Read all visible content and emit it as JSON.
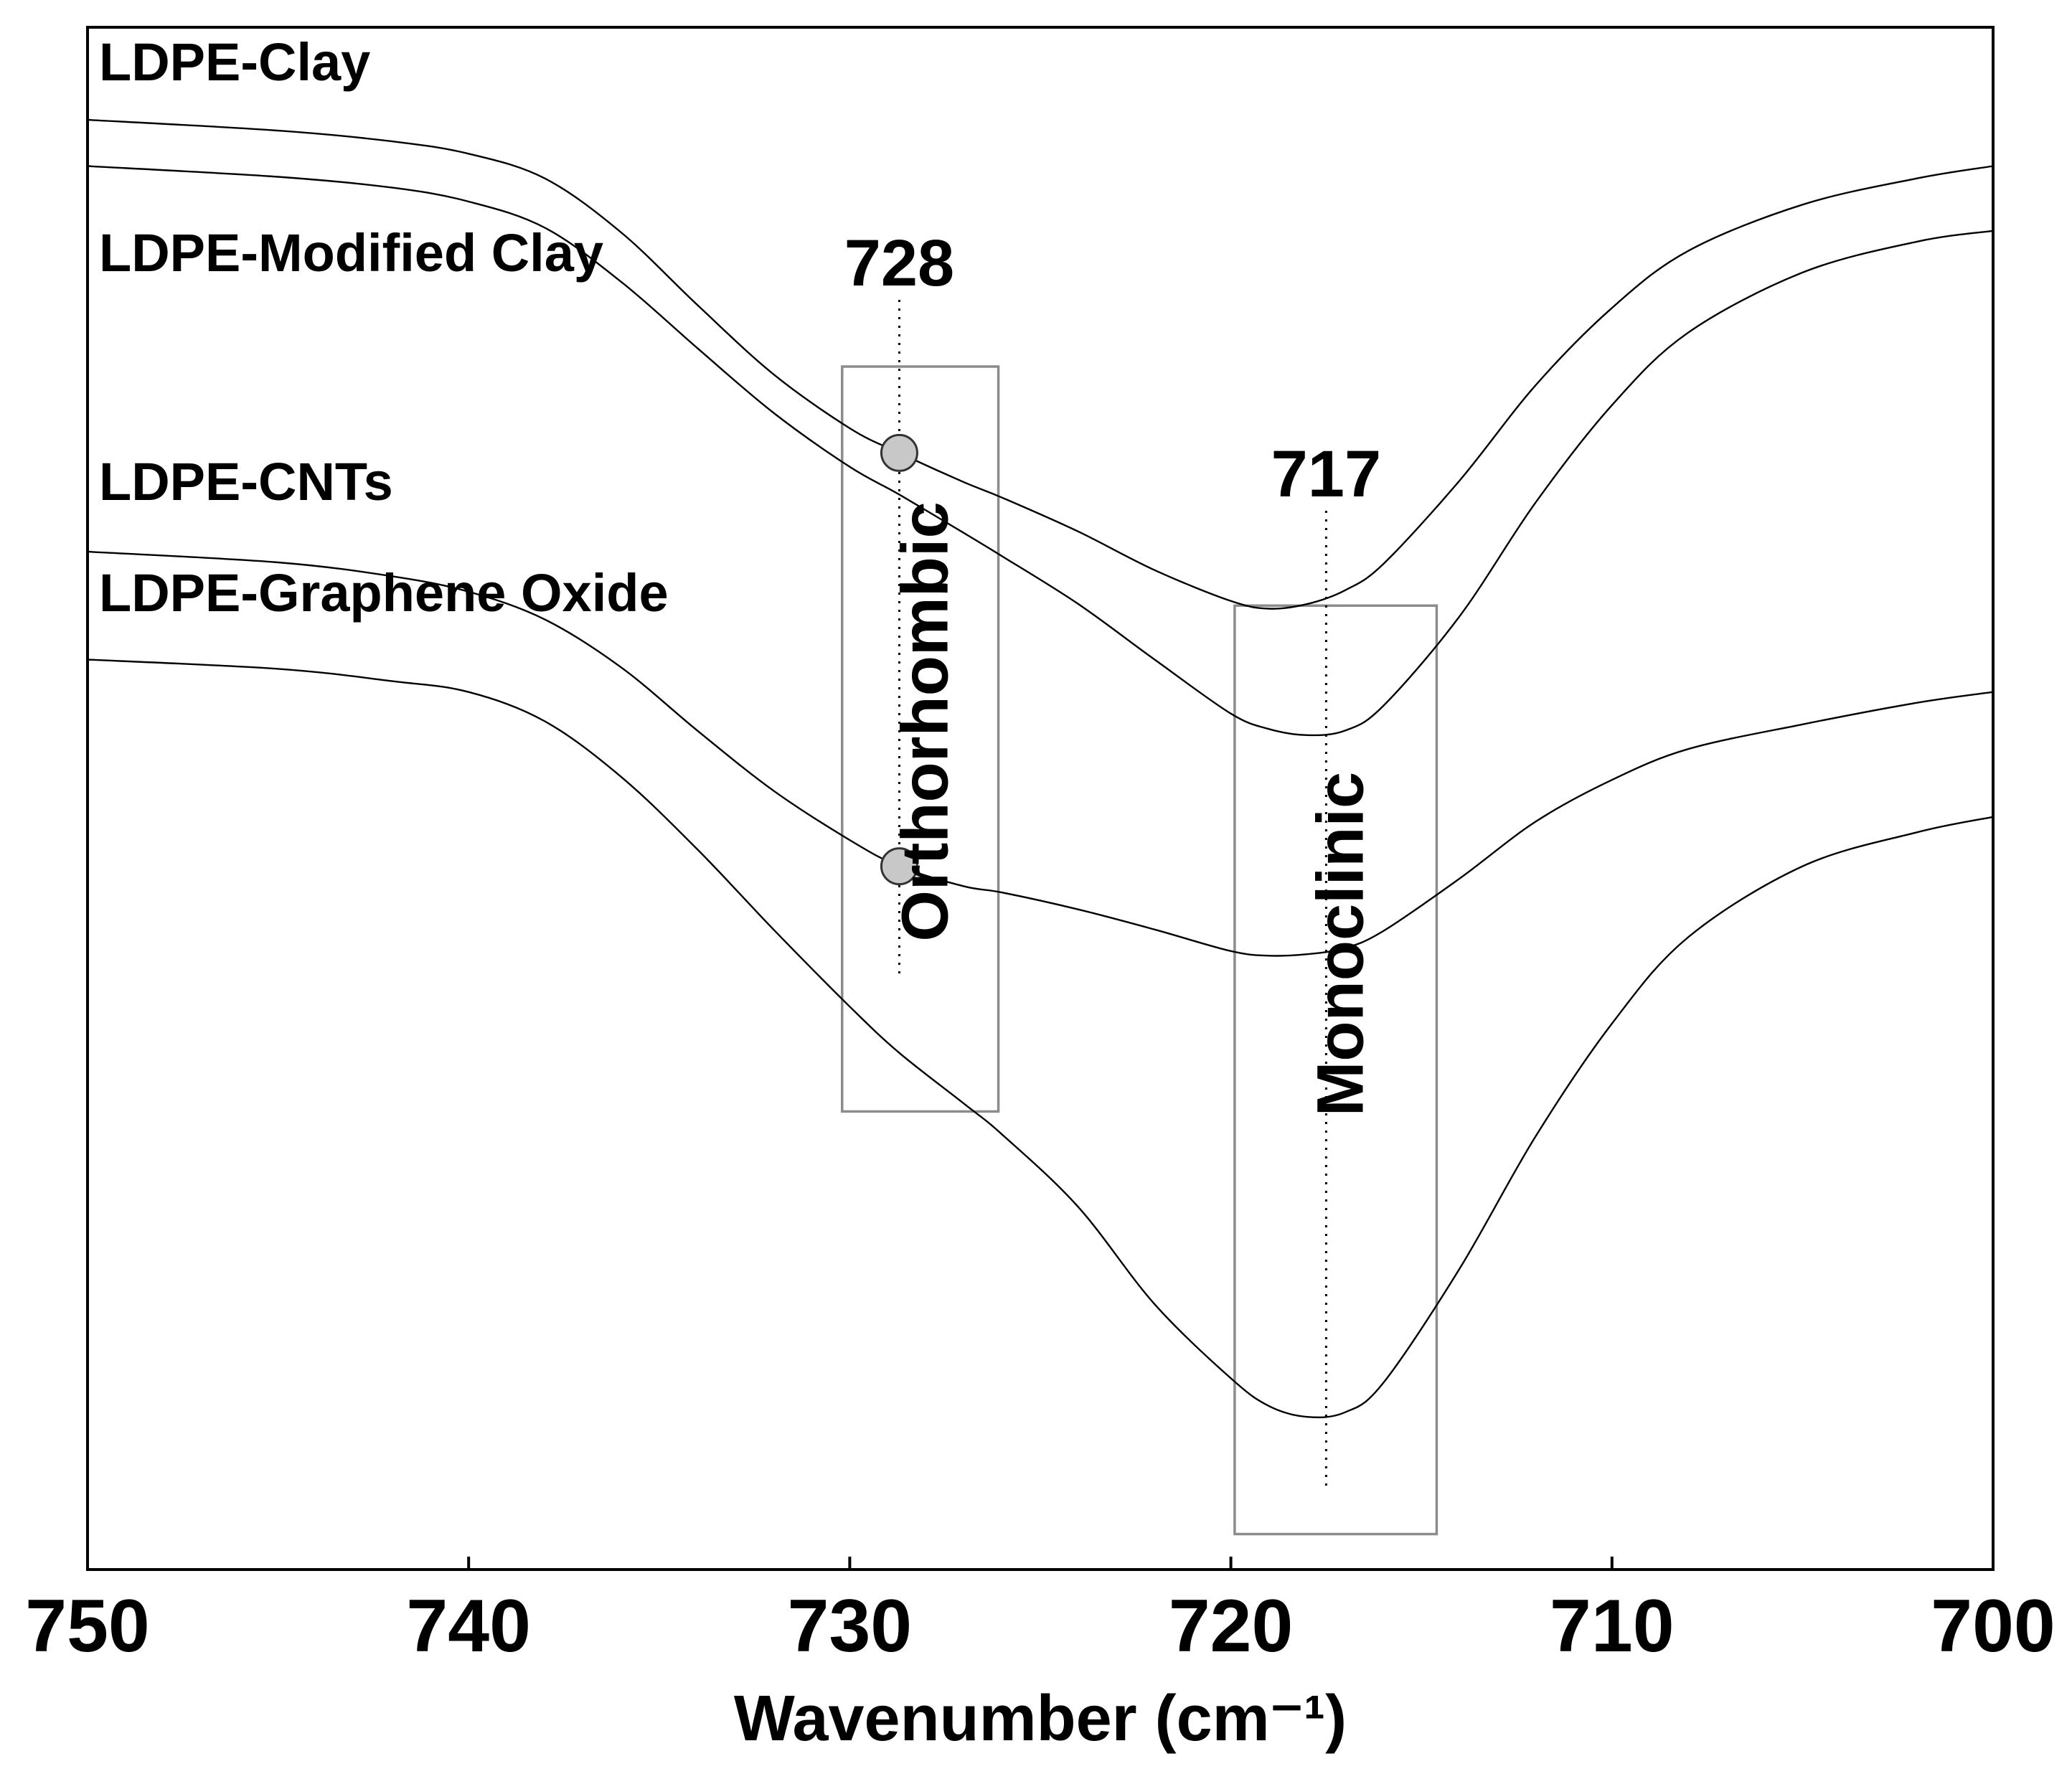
{
  "chart_data": {
    "type": "line",
    "title": "",
    "xlabel": "Wavenumber (cm⁻¹)",
    "ylabel": "",
    "xlim": [
      750,
      700
    ],
    "ylim": [
      0,
      100
    ],
    "x_reversed": true,
    "grid": false,
    "xticks": [
      750,
      740,
      730,
      720,
      710,
      700
    ],
    "x": [
      750,
      745,
      742,
      740,
      738,
      736,
      734,
      732,
      730,
      728.7,
      727,
      726,
      724,
      722,
      720,
      719,
      718,
      717,
      716,
      714,
      712,
      710,
      708,
      705,
      702,
      700
    ],
    "series": [
      {
        "name": "LDPE-Clay",
        "values": [
          94.0,
          93.3,
          92.6,
          91.8,
          90.2,
          86.7,
          82.0,
          77.5,
          74.0,
          72.4,
          70.5,
          69.5,
          67.3,
          64.8,
          62.8,
          62.3,
          62.6,
          63.5,
          65.2,
          70.6,
          76.8,
          81.8,
          85.5,
          88.5,
          90.2,
          91.0
        ]
      },
      {
        "name": "LDPE-Modified Clay",
        "values": [
          91.0,
          90.3,
          89.6,
          88.7,
          87.0,
          83.5,
          79.2,
          75.0,
          71.5,
          69.7,
          67.2,
          65.7,
          62.6,
          59.0,
          55.5,
          54.5,
          54.1,
          54.4,
          56.0,
          61.8,
          69.2,
          75.5,
          80.2,
          84.1,
          86.1,
          86.8
        ]
      },
      {
        "name": "LDPE-CNTs",
        "values": [
          66.0,
          65.3,
          64.4,
          63.4,
          61.6,
          58.5,
          54.4,
          50.5,
          47.3,
          45.6,
          44.3,
          43.9,
          42.8,
          41.5,
          40.1,
          39.8,
          39.9,
          40.3,
          41.4,
          44.8,
          48.5,
          51.2,
          53.2,
          54.8,
          56.2,
          56.9
        ]
      },
      {
        "name": "LDPE-Graphene Oxide",
        "values": [
          59.0,
          58.4,
          57.6,
          56.9,
          55.0,
          51.4,
          46.7,
          41.5,
          36.5,
          33.5,
          30.2,
          28.2,
          23.5,
          17.2,
          12.4,
          10.6,
          9.9,
          10.2,
          12.1,
          19.5,
          28.1,
          35.4,
          41.0,
          45.6,
          47.8,
          48.8
        ]
      }
    ],
    "annotations": [
      {
        "label": "728",
        "x": 728.7,
        "type": "peak-line"
      },
      {
        "label": "717",
        "x": 717.5,
        "type": "peak-line"
      }
    ],
    "regions": [
      {
        "label": "Orthorhombic",
        "x_range": [
          730.2,
          726.1
        ],
        "y_range": [
          29.7,
          78.0
        ]
      },
      {
        "label": "Monoclinic",
        "x_range": [
          719.9,
          714.6
        ],
        "y_range": [
          2.3,
          62.5
        ]
      }
    ],
    "markers": [
      {
        "series": "LDPE-Clay",
        "x": 728.7
      },
      {
        "series": "LDPE-CNTs",
        "x": 728.7
      }
    ],
    "series_label_placement": "top-left"
  }
}
